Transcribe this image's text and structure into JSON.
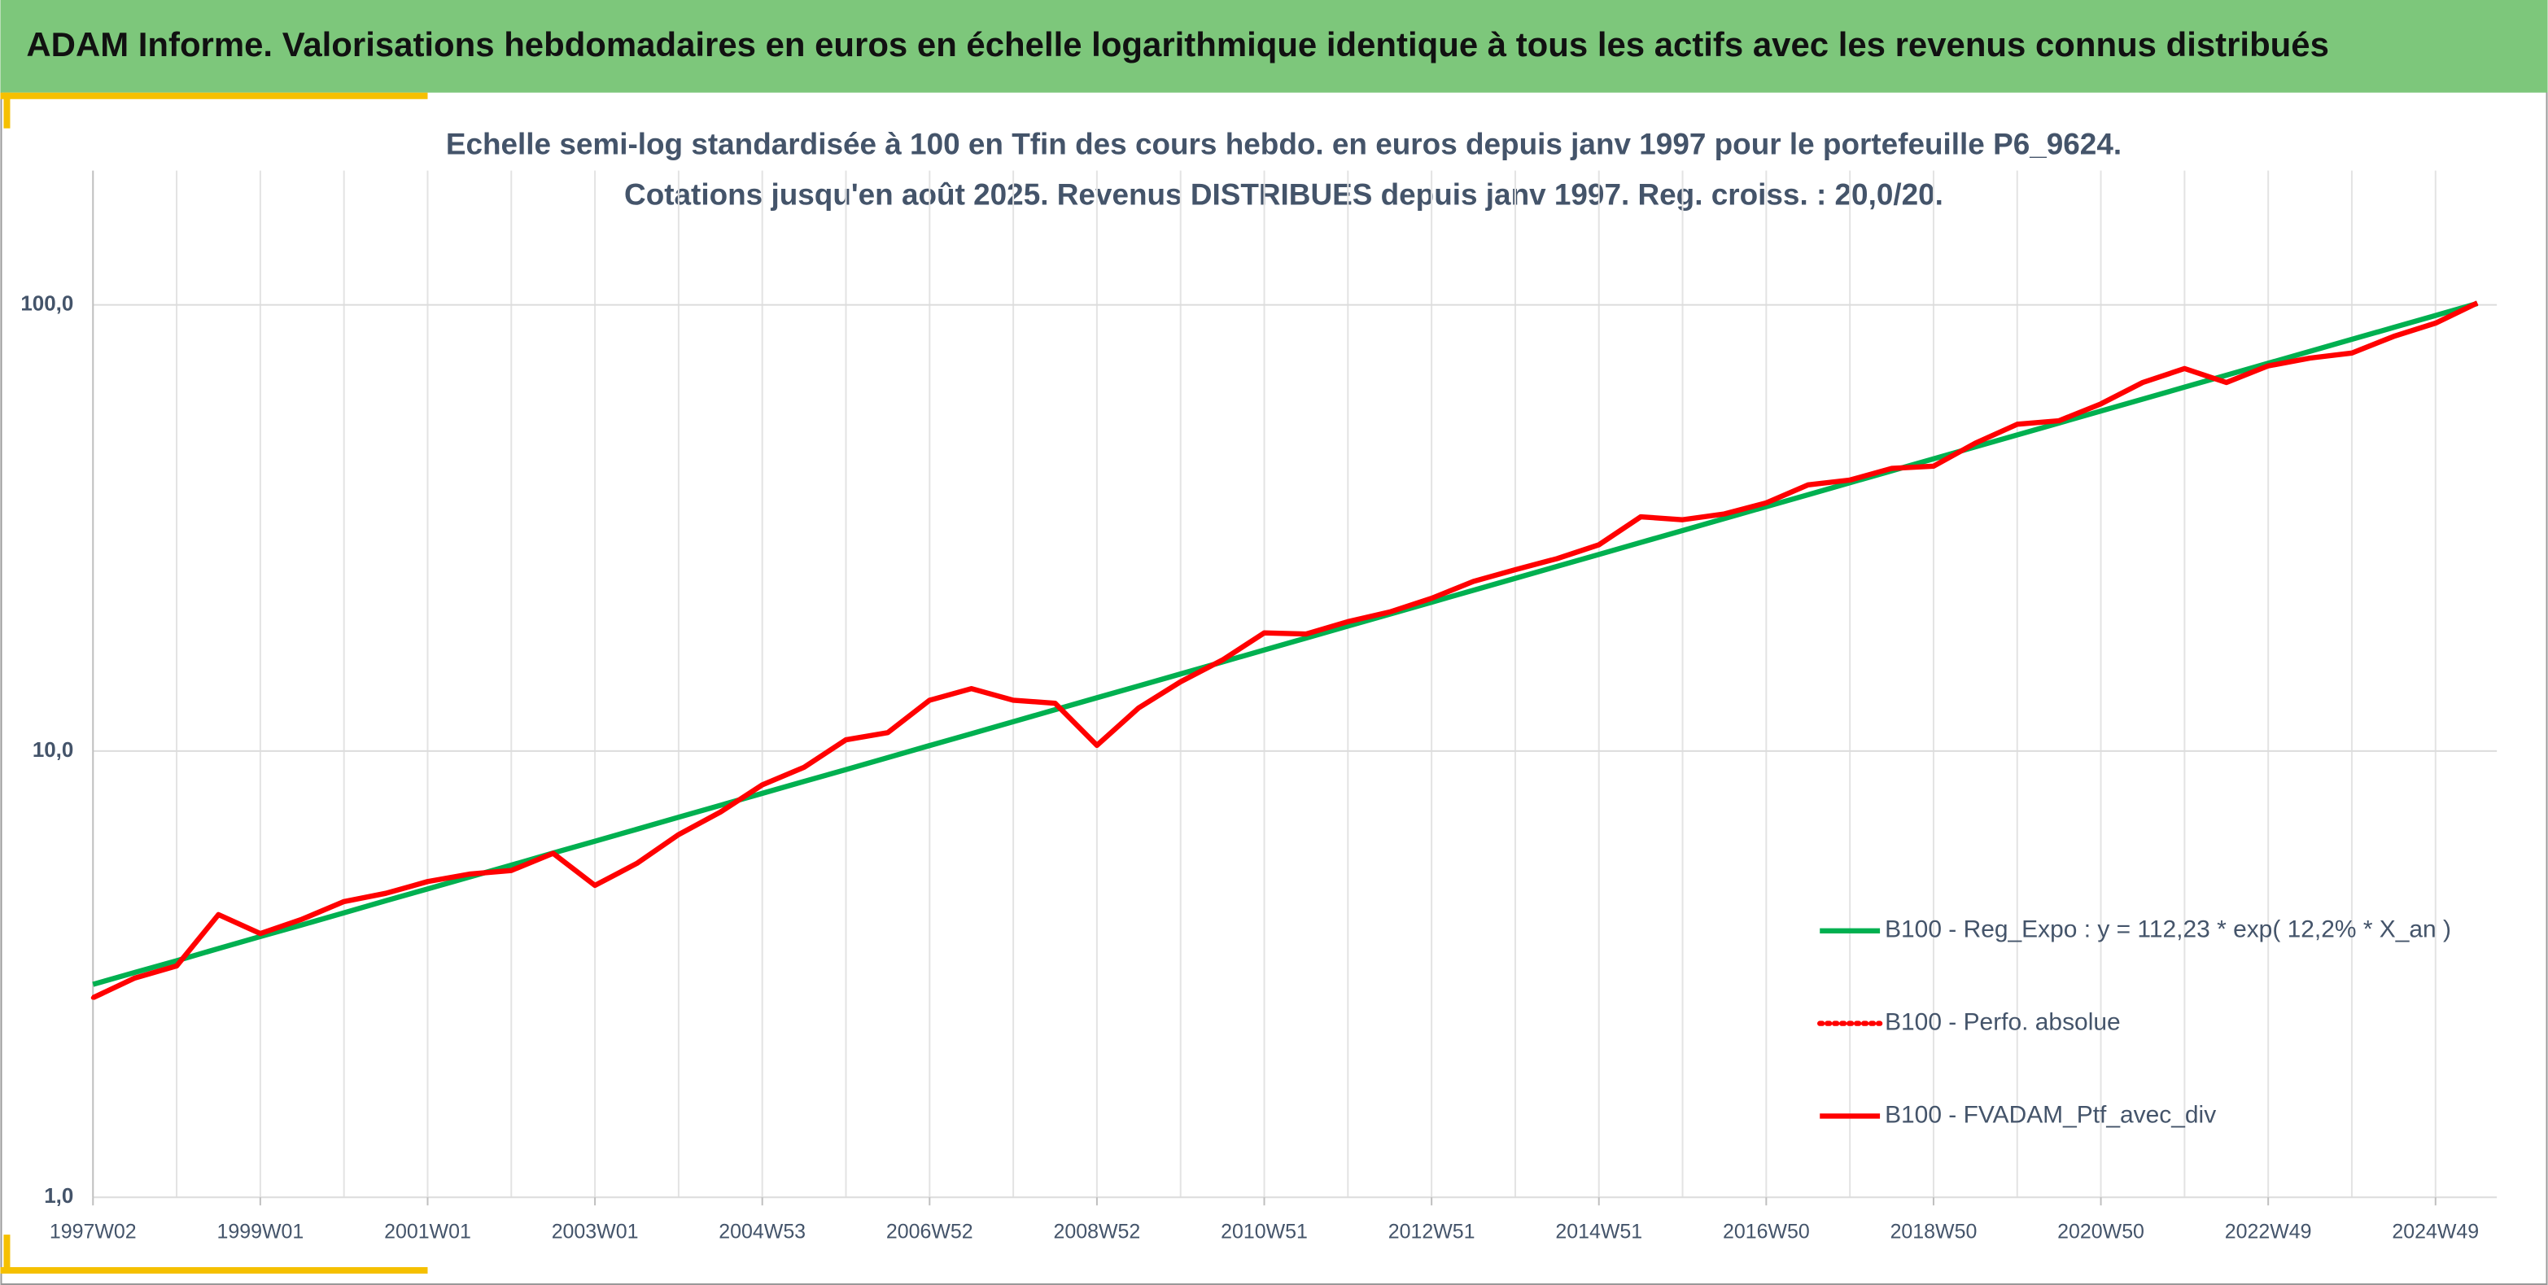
{
  "header": {
    "title": "ADAM Informe. Valorisations hebdomadaires en euros en échelle logarithmique identique à tous les actifs avec les revenus connus distribués"
  },
  "chart_data": {
    "type": "line",
    "title": "Echelle semi-log standardisée à 100 en Tfin des cours hebdo. en euros depuis janv 1997 pour le portefeuille P6_9624.",
    "subtitle": "Cotations jusqu'en août 2025. Revenus DISTRIBUES depuis janv 1997. Reg. croiss. : 20,0/20.",
    "log_scale": true,
    "grid": true,
    "legend_position": "right",
    "categories": [
      "1997W02",
      null,
      null,
      null,
      "1999W01",
      null,
      null,
      null,
      "2001W01",
      null,
      null,
      null,
      "2003W01",
      null,
      null,
      null,
      "2004W53",
      null,
      null,
      null,
      "2006W52",
      null,
      null,
      null,
      "2008W52",
      null,
      null,
      null,
      "2010W51",
      null,
      null,
      null,
      "2012W51",
      null,
      null,
      null,
      "2014W51",
      null,
      null,
      null,
      "2016W50",
      null,
      null,
      null,
      "2018W50",
      null,
      null,
      null,
      "2020W50",
      null,
      null,
      null,
      "2022W49",
      null,
      null,
      null,
      "2024W49",
      null
    ],
    "ylim": [
      1,
      200
    ],
    "yticks": [
      {
        "value": 1,
        "label": "1,0"
      },
      {
        "value": 10,
        "label": "10,0"
      },
      {
        "value": 100,
        "label": "100,0"
      }
    ],
    "series": [
      {
        "name": "B100 - Reg_Expo : y = 112,23 * exp( 12,2% *  X_an )",
        "color": "#00b050",
        "line_style": "solid",
        "values": [
          3.0,
          3.19,
          3.39,
          3.61,
          3.84,
          4.08,
          4.34,
          4.62,
          4.91,
          5.22,
          5.55,
          5.91,
          6.28,
          6.68,
          7.11,
          7.56,
          8.04,
          8.55,
          9.09,
          9.67,
          10.29,
          10.94,
          11.64,
          12.38,
          13.17,
          14.0,
          14.89,
          15.84,
          16.85,
          17.92,
          19.06,
          20.27,
          21.56,
          22.93,
          24.39,
          25.94,
          27.59,
          29.35,
          31.21,
          33.2,
          35.31,
          37.55,
          39.94,
          42.48,
          45.18,
          48.06,
          51.11,
          54.36,
          57.82,
          61.5,
          65.41,
          69.57,
          74.0,
          78.7,
          83.71,
          89.03,
          94.69,
          100.71
        ]
      },
      {
        "name": "B100 - Perfo. absolue",
        "color": "#ff0000",
        "line_style": "dotted",
        "values": [
          2.8,
          3.1,
          3.3,
          4.3,
          3.9,
          4.2,
          4.6,
          4.8,
          5.1,
          5.3,
          5.4,
          5.9,
          5.0,
          5.6,
          6.5,
          7.3,
          8.4,
          9.2,
          10.6,
          11.0,
          13.0,
          13.8,
          13.0,
          12.8,
          10.3,
          12.5,
          14.3,
          16.0,
          18.4,
          18.3,
          19.5,
          20.5,
          22.0,
          24.0,
          25.5,
          27.0,
          29.0,
          33.5,
          33.0,
          34.0,
          36.0,
          39.5,
          40.5,
          43.0,
          43.5,
          49.0,
          54.0,
          55.0,
          60.0,
          67.0,
          72.0,
          67.0,
          73.0,
          76.0,
          78.0,
          85.0,
          91.0,
          101.0
        ]
      },
      {
        "name": "B100 - FVADAM_Ptf_avec_div",
        "color": "#ff0000",
        "line_style": "solid",
        "values": [
          2.8,
          3.1,
          3.3,
          4.3,
          3.9,
          4.2,
          4.6,
          4.8,
          5.1,
          5.3,
          5.4,
          5.9,
          5.0,
          5.6,
          6.5,
          7.3,
          8.4,
          9.2,
          10.6,
          11.0,
          13.0,
          13.8,
          13.0,
          12.8,
          10.3,
          12.5,
          14.3,
          16.0,
          18.4,
          18.3,
          19.5,
          20.5,
          22.0,
          24.0,
          25.5,
          27.0,
          29.0,
          33.5,
          33.0,
          34.0,
          36.0,
          39.5,
          40.5,
          43.0,
          43.5,
          49.0,
          54.0,
          55.0,
          60.0,
          67.0,
          72.0,
          67.0,
          73.0,
          76.0,
          78.0,
          85.0,
          91.0,
          101.0
        ]
      }
    ]
  }
}
